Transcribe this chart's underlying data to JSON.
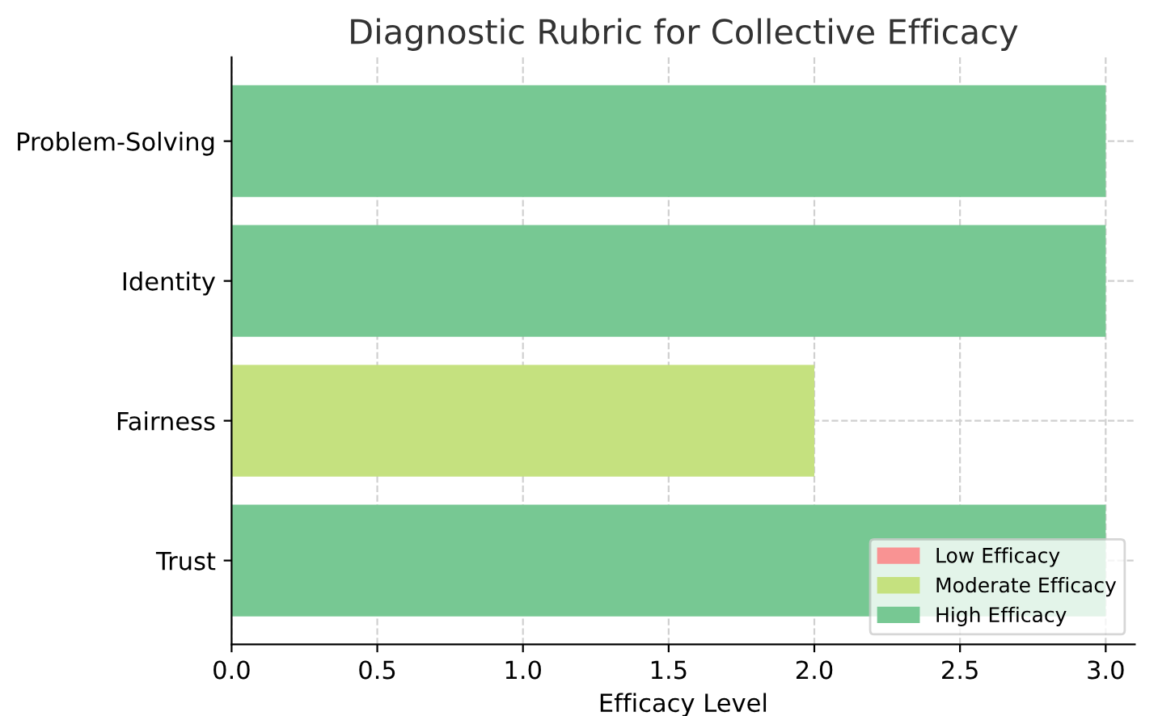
{
  "chart_data": {
    "type": "bar",
    "orientation": "horizontal",
    "title": "Diagnostic Rubric for Collective Efficacy",
    "xlabel": "Efficacy Level",
    "categories": [
      "Problem-Solving",
      "Identity",
      "Fairness",
      "Trust"
    ],
    "series": [
      {
        "name": "Low Efficacy",
        "color": "#f99393",
        "values": [
          null,
          null,
          null,
          null
        ]
      },
      {
        "name": "Moderate Efficacy",
        "color": "#c5e17f",
        "values": [
          null,
          null,
          2,
          null
        ]
      },
      {
        "name": "High Efficacy",
        "color": "#77c893",
        "values": [
          3,
          3,
          null,
          3
        ]
      }
    ],
    "xlim": [
      0,
      3.1
    ],
    "xticks": [
      {
        "value": 0,
        "label": "0.0"
      },
      0.5,
      {
        "value": 1,
        "label": "1.0"
      },
      1.5,
      {
        "value": 2,
        "label": "2.0"
      },
      2.5,
      {
        "value": 3,
        "label": "3.0"
      }
    ],
    "grid": true,
    "legend": "bottom right"
  }
}
